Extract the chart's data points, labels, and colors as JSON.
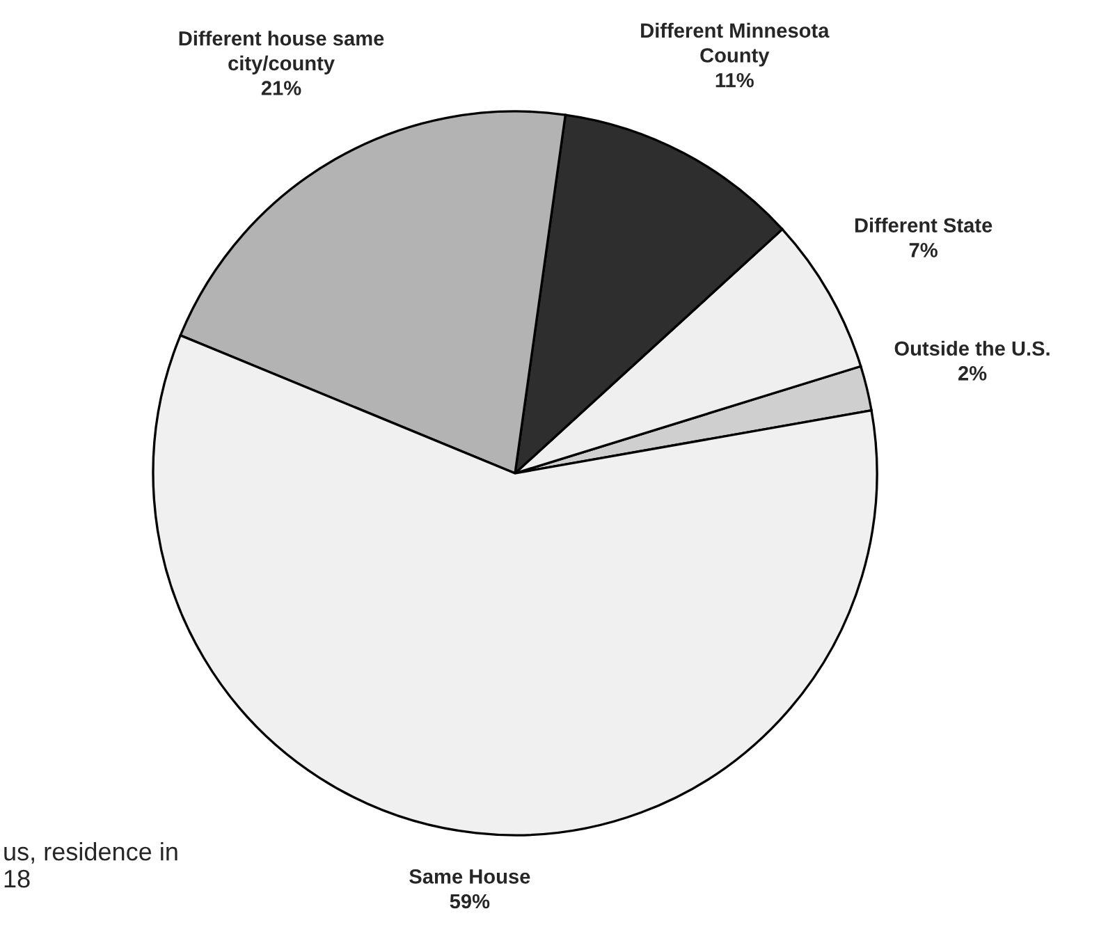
{
  "chart_data": {
    "type": "pie",
    "categories": [
      "Outside the U.S.",
      "Different State",
      "Different Minnesota\nCounty",
      "Different house same\ncity/county",
      "Same House"
    ],
    "values": [
      2,
      7,
      11,
      21,
      59
    ],
    "value_labels": [
      "2%",
      "7%",
      "11%",
      "21%",
      "59%"
    ],
    "colors": [
      "#cfcfcf",
      "#efefef",
      "#2e2e2e",
      "#b3b3b3",
      "#f0f0f0"
    ],
    "annotations": [
      "us, residence in\n18"
    ]
  }
}
